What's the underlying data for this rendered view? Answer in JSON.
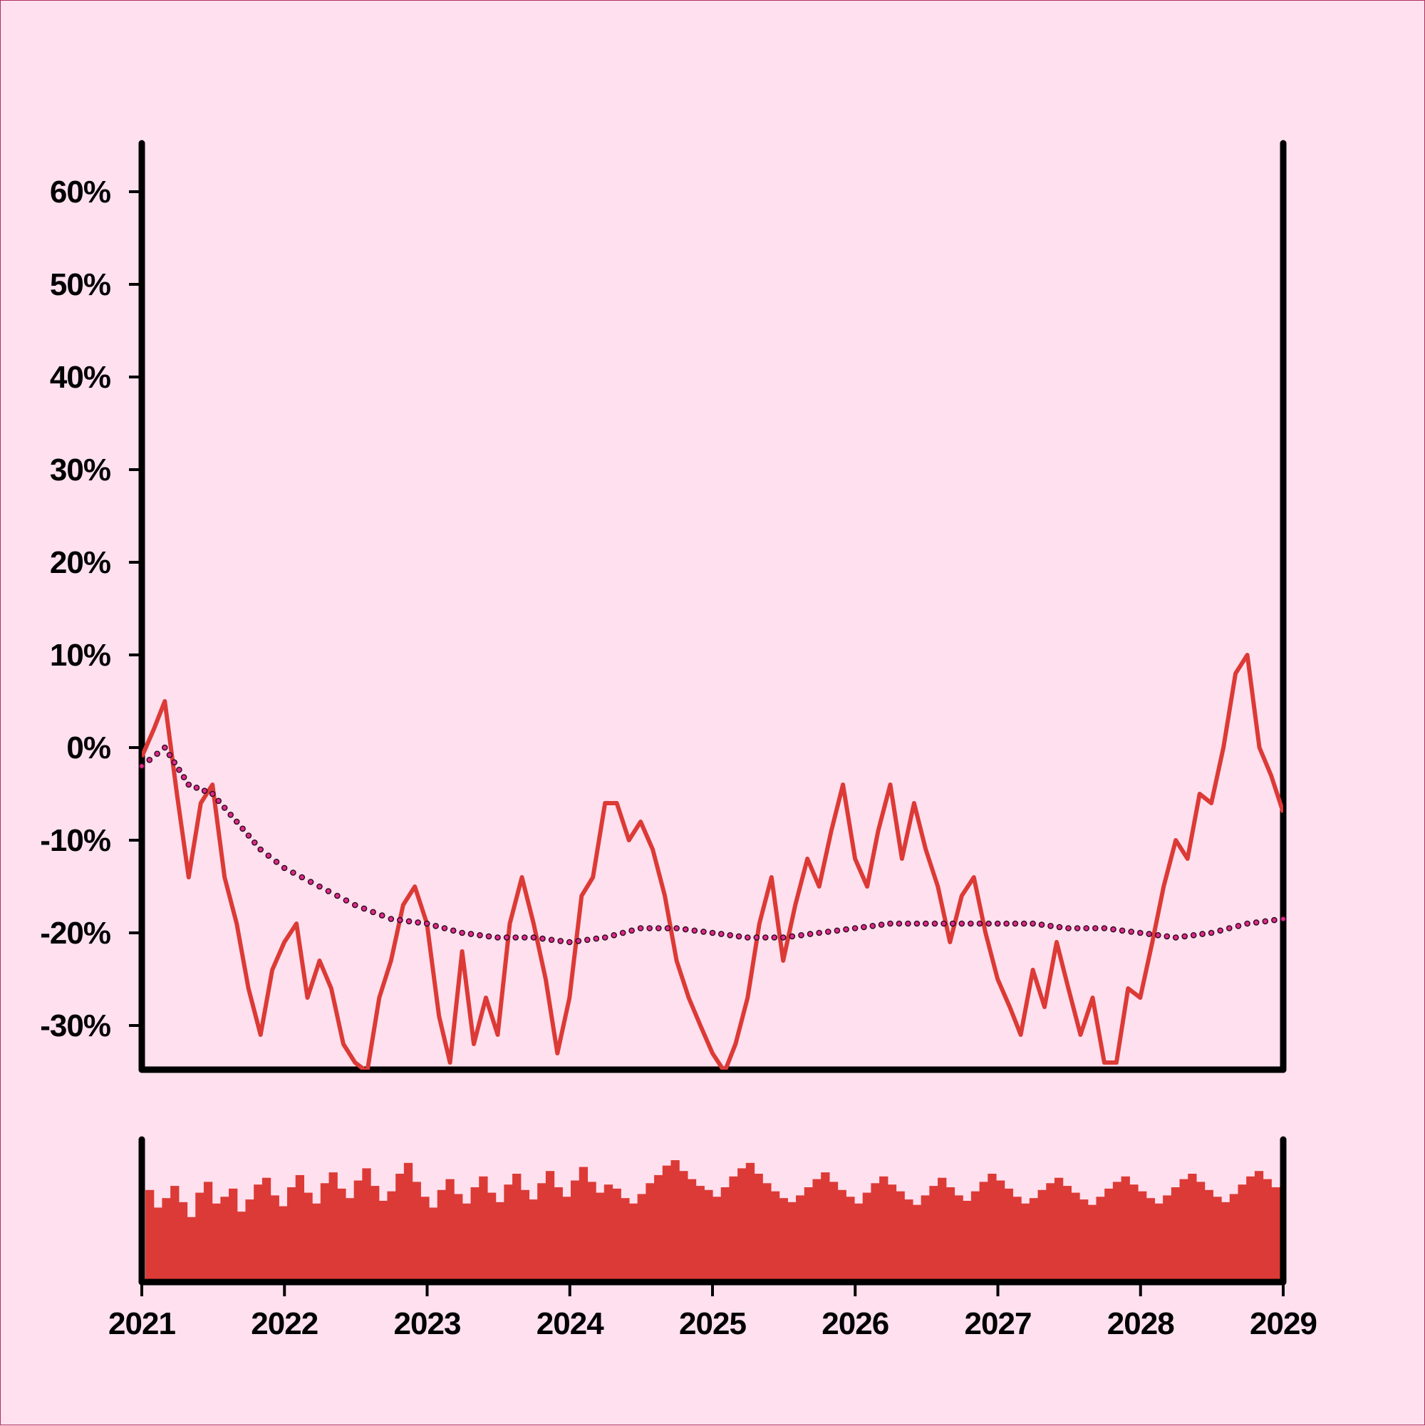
{
  "chart_data": [
    {
      "type": "line",
      "title": "",
      "xlabel": "",
      "ylabel": "",
      "x_ticks": [
        "2021",
        "2022",
        "2023",
        "2024",
        "2025",
        "2026",
        "2027",
        "2028",
        "2029"
      ],
      "y_ticks": [
        "60%",
        "50%",
        "40%",
        "30%",
        "20%",
        "10%",
        "0%",
        "-10%",
        "-20%",
        "-30%"
      ],
      "xlim": [
        "2021-01-01",
        "2029-01-01"
      ],
      "ylim": [
        -35,
        65
      ],
      "grid": false,
      "legend": "none",
      "series": [
        {
          "style": "solid",
          "color": "#dc3a36",
          "points": [
            [
              "2021-01-01",
              -1
            ],
            [
              "2021-02-01",
              2
            ],
            [
              "2021-03-01",
              5
            ],
            [
              "2021-04-01",
              -5
            ],
            [
              "2021-05-01",
              -14
            ],
            [
              "2021-06-01",
              -6
            ],
            [
              "2021-07-01",
              -4
            ],
            [
              "2021-08-01",
              -14
            ],
            [
              "2021-09-01",
              -19
            ],
            [
              "2021-10-01",
              -26
            ],
            [
              "2021-11-01",
              -31
            ],
            [
              "2021-12-01",
              -24
            ],
            [
              "2022-01-01",
              -21
            ],
            [
              "2022-02-01",
              -19
            ],
            [
              "2022-03-01",
              -27
            ],
            [
              "2022-04-01",
              -23
            ],
            [
              "2022-05-01",
              -26
            ],
            [
              "2022-06-01",
              -32
            ],
            [
              "2022-07-01",
              -34
            ],
            [
              "2022-08-01",
              -35
            ],
            [
              "2022-09-01",
              -27
            ],
            [
              "2022-10-01",
              -23
            ],
            [
              "2022-11-01",
              -17
            ],
            [
              "2022-12-01",
              -15
            ],
            [
              "2023-01-01",
              -19
            ],
            [
              "2023-02-01",
              -29
            ],
            [
              "2023-03-01",
              -34
            ],
            [
              "2023-04-01",
              -22
            ],
            [
              "2023-05-01",
              -32
            ],
            [
              "2023-06-01",
              -27
            ],
            [
              "2023-07-01",
              -31
            ],
            [
              "2023-08-01",
              -19
            ],
            [
              "2023-09-01",
              -14
            ],
            [
              "2023-10-01",
              -19
            ],
            [
              "2023-11-01",
              -25
            ],
            [
              "2023-12-01",
              -33
            ],
            [
              "2024-01-01",
              -27
            ],
            [
              "2024-02-01",
              -16
            ],
            [
              "2024-03-01",
              -14
            ],
            [
              "2024-04-01",
              -6
            ],
            [
              "2024-05-01",
              -6
            ],
            [
              "2024-06-01",
              -10
            ],
            [
              "2024-07-01",
              -8
            ],
            [
              "2024-08-01",
              -11
            ],
            [
              "2024-09-01",
              -16
            ],
            [
              "2024-10-01",
              -23
            ],
            [
              "2024-11-01",
              -27
            ],
            [
              "2024-12-01",
              -30
            ],
            [
              "2025-01-01",
              -33
            ],
            [
              "2025-02-01",
              -35
            ],
            [
              "2025-03-01",
              -32
            ],
            [
              "2025-04-01",
              -27
            ],
            [
              "2025-05-01",
              -19
            ],
            [
              "2025-06-01",
              -14
            ],
            [
              "2025-07-01",
              -23
            ],
            [
              "2025-08-01",
              -17
            ],
            [
              "2025-09-01",
              -12
            ],
            [
              "2025-10-01",
              -15
            ],
            [
              "2025-11-01",
              -9
            ],
            [
              "2025-12-01",
              -4
            ],
            [
              "2026-01-01",
              -12
            ],
            [
              "2026-02-01",
              -15
            ],
            [
              "2026-03-01",
              -9
            ],
            [
              "2026-04-01",
              -4
            ],
            [
              "2026-05-01",
              -12
            ],
            [
              "2026-06-01",
              -6
            ],
            [
              "2026-07-01",
              -11
            ],
            [
              "2026-08-01",
              -15
            ],
            [
              "2026-09-01",
              -21
            ],
            [
              "2026-10-01",
              -16
            ],
            [
              "2026-11-01",
              -14
            ],
            [
              "2026-12-01",
              -20
            ],
            [
              "2027-01-01",
              -25
            ],
            [
              "2027-02-01",
              -28
            ],
            [
              "2027-03-01",
              -31
            ],
            [
              "2027-04-01",
              -24
            ],
            [
              "2027-05-01",
              -28
            ],
            [
              "2027-06-01",
              -21
            ],
            [
              "2027-07-01",
              -26
            ],
            [
              "2027-08-01",
              -31
            ],
            [
              "2027-09-01",
              -27
            ],
            [
              "2027-10-01",
              -34
            ],
            [
              "2027-11-01",
              -34
            ],
            [
              "2027-12-01",
              -26
            ],
            [
              "2028-01-01",
              -27
            ],
            [
              "2028-02-01",
              -21
            ],
            [
              "2028-03-01",
              -15
            ],
            [
              "2028-04-01",
              -10
            ],
            [
              "2028-05-01",
              -12
            ],
            [
              "2028-06-01",
              -5
            ],
            [
              "2028-07-01",
              -6
            ],
            [
              "2028-08-01",
              0
            ],
            [
              "2028-09-01",
              8
            ],
            [
              "2028-10-01",
              10
            ],
            [
              "2028-11-01",
              0
            ],
            [
              "2028-12-01",
              -3
            ],
            [
              "2029-01-01",
              -7
            ]
          ]
        },
        {
          "style": "dotted",
          "color": "#e0288a",
          "points": [
            [
              "2021-01-01",
              -2
            ],
            [
              "2021-03-01",
              0
            ],
            [
              "2021-05-01",
              -4
            ],
            [
              "2021-07-01",
              -5
            ],
            [
              "2021-09-01",
              -8
            ],
            [
              "2021-11-01",
              -11
            ],
            [
              "2022-01-01",
              -13
            ],
            [
              "2022-04-01",
              -15
            ],
            [
              "2022-07-01",
              -17
            ],
            [
              "2022-10-01",
              -18.5
            ],
            [
              "2023-01-01",
              -19
            ],
            [
              "2023-04-01",
              -20
            ],
            [
              "2023-07-01",
              -20.5
            ],
            [
              "2023-10-01",
              -20.5
            ],
            [
              "2024-01-01",
              -21
            ],
            [
              "2024-04-01",
              -20.5
            ],
            [
              "2024-07-01",
              -19.5
            ],
            [
              "2024-10-01",
              -19.5
            ],
            [
              "2025-01-01",
              -20
            ],
            [
              "2025-04-01",
              -20.5
            ],
            [
              "2025-07-01",
              -20.5
            ],
            [
              "2025-10-01",
              -20
            ],
            [
              "2026-01-01",
              -19.5
            ],
            [
              "2026-04-01",
              -19
            ],
            [
              "2026-07-01",
              -19
            ],
            [
              "2026-10-01",
              -19
            ],
            [
              "2027-01-01",
              -19
            ],
            [
              "2027-04-01",
              -19
            ],
            [
              "2027-07-01",
              -19.5
            ],
            [
              "2027-10-01",
              -19.5
            ],
            [
              "2028-01-01",
              -20
            ],
            [
              "2028-04-01",
              -20.5
            ],
            [
              "2028-07-01",
              -20
            ],
            [
              "2028-10-01",
              -19
            ],
            [
              "2029-01-01",
              -18.5
            ]
          ]
        }
      ]
    },
    {
      "type": "bar",
      "color": "#dc3a36",
      "ylim": [
        0,
        1
      ],
      "values": [
        0.68,
        0.55,
        0.62,
        0.71,
        0.59,
        0.48,
        0.66,
        0.74,
        0.58,
        0.63,
        0.69,
        0.52,
        0.61,
        0.72,
        0.77,
        0.64,
        0.56,
        0.7,
        0.79,
        0.66,
        0.58,
        0.73,
        0.81,
        0.69,
        0.62,
        0.75,
        0.84,
        0.71,
        0.6,
        0.67,
        0.8,
        0.88,
        0.74,
        0.63,
        0.55,
        0.68,
        0.76,
        0.65,
        0.58,
        0.7,
        0.78,
        0.66,
        0.59,
        0.72,
        0.8,
        0.68,
        0.61,
        0.73,
        0.82,
        0.7,
        0.63,
        0.75,
        0.85,
        0.74,
        0.66,
        0.72,
        0.69,
        0.62,
        0.58,
        0.65,
        0.73,
        0.79,
        0.86,
        0.9,
        0.82,
        0.76,
        0.71,
        0.68,
        0.63,
        0.7,
        0.78,
        0.84,
        0.88,
        0.8,
        0.73,
        0.67,
        0.62,
        0.59,
        0.64,
        0.7,
        0.76,
        0.81,
        0.74,
        0.68,
        0.63,
        0.58,
        0.66,
        0.73,
        0.78,
        0.72,
        0.67,
        0.61,
        0.57,
        0.64,
        0.71,
        0.77,
        0.7,
        0.64,
        0.6,
        0.67,
        0.74,
        0.8,
        0.75,
        0.69,
        0.63,
        0.58,
        0.62,
        0.68,
        0.73,
        0.77,
        0.71,
        0.66,
        0.61,
        0.57,
        0.63,
        0.69,
        0.74,
        0.78,
        0.72,
        0.67,
        0.62,
        0.58,
        0.64,
        0.7,
        0.76,
        0.8,
        0.74,
        0.68,
        0.63,
        0.59,
        0.65,
        0.72,
        0.78,
        0.82,
        0.76,
        0.7
      ]
    }
  ]
}
